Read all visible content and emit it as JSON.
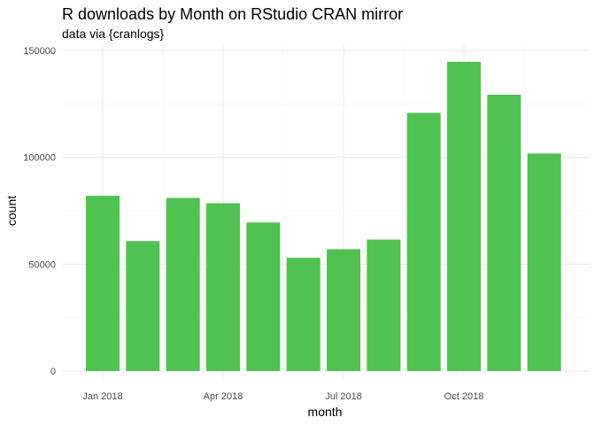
{
  "chart_data": {
    "type": "bar",
    "title": "R downloads by Month on RStudio CRAN mirror",
    "subtitle": "data via {cranlogs}",
    "xlabel": "month",
    "ylabel": "count",
    "bar_color": "#50c252",
    "grid": true,
    "x": [
      "2018-01",
      "2018-02",
      "2018-03",
      "2018-04",
      "2018-05",
      "2018-06",
      "2018-07",
      "2018-08",
      "2018-09",
      "2018-10",
      "2018-11",
      "2018-12"
    ],
    "values": [
      82000,
      60800,
      81000,
      78500,
      69500,
      53000,
      57000,
      61500,
      120800,
      144700,
      129300,
      101800
    ],
    "x_ticks": [
      {
        "at": "2018-01",
        "label": "Jan 2018"
      },
      {
        "at": "2018-04",
        "label": "Apr 2018"
      },
      {
        "at": "2018-07",
        "label": "Jul 2018"
      },
      {
        "at": "2018-10",
        "label": "Oct 2018"
      }
    ],
    "ylim": [
      0,
      150000
    ],
    "y_ticks": [
      {
        "value": 0,
        "label": "0"
      },
      {
        "value": 50000,
        "label": "50000"
      },
      {
        "value": 100000,
        "label": "100000"
      },
      {
        "value": 150000,
        "label": "150000"
      }
    ]
  }
}
